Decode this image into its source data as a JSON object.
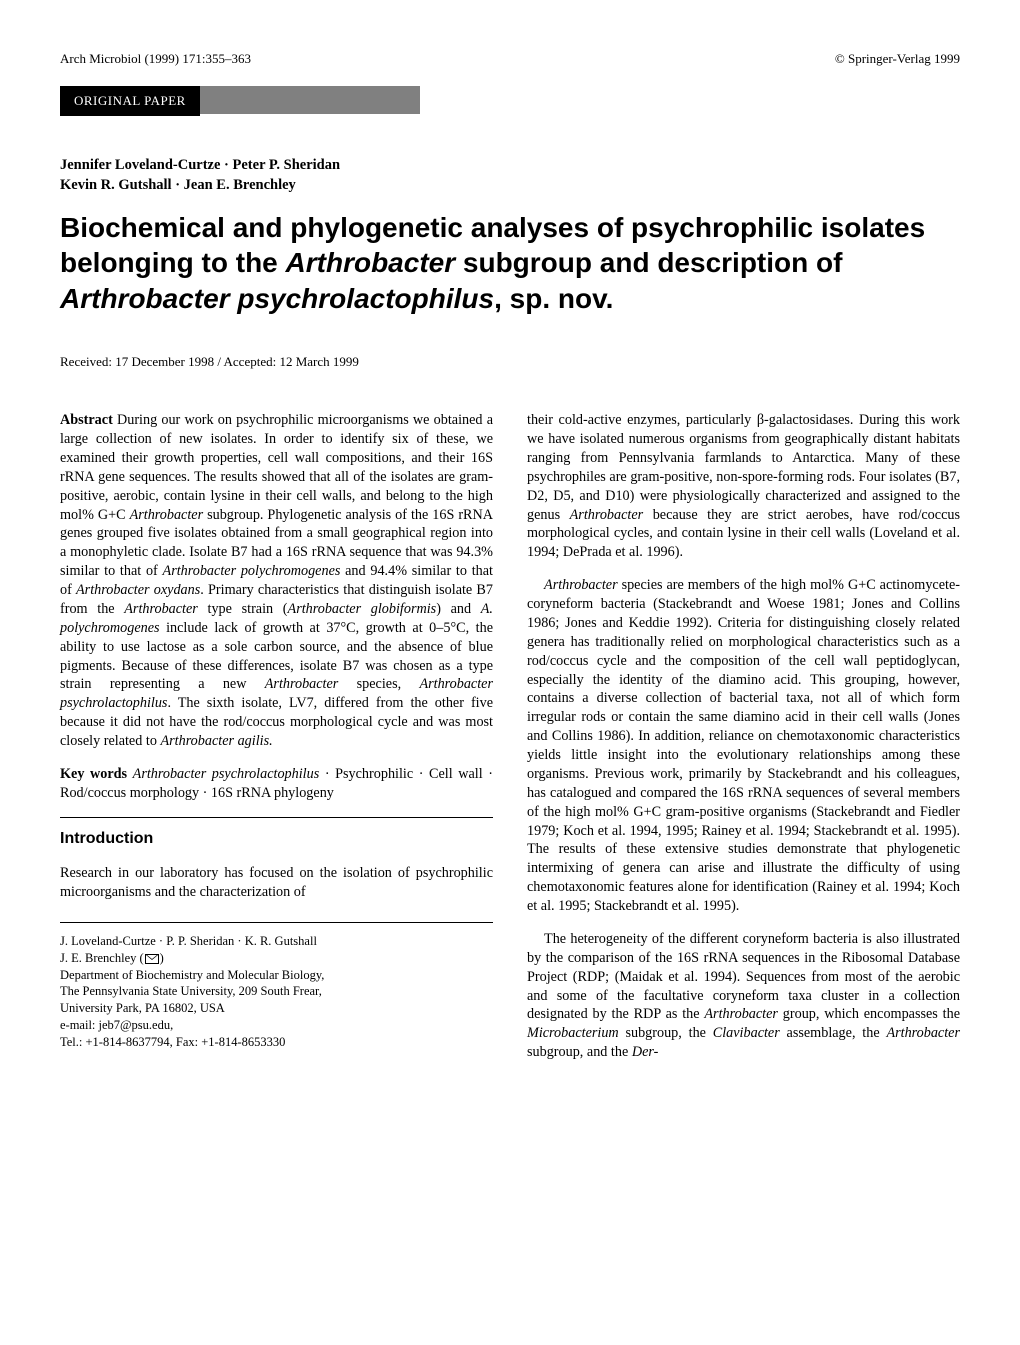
{
  "journal_ref": "Arch Microbiol (1999) 171:355–363",
  "copyright": "© Springer-Verlag 1999",
  "section_label": "ORIGINAL PAPER",
  "authors_line1": "Jennifer Loveland-Curtze · Peter P. Sheridan",
  "authors_line2": "Kevin R. Gutshall · Jean E. Brenchley",
  "title": "Biochemical and phylogenetic analyses of psychrophilic isolates belonging to the Arthrobacter subgroup and description of Arthrobacter psychrolactophilus, sp. nov.",
  "title_parts": {
    "a": "Biochemical and phylogenetic analyses of psychrophilic isolates belonging to the ",
    "b": "Arthrobacter",
    "c": " subgroup and description of ",
    "d": "Arthrobacter psychrolactophilus",
    "e": ", sp. nov."
  },
  "received": "Received: 17 December 1998 / Accepted: 12 March 1999",
  "abstract": {
    "label": "Abstract",
    "text1": " During our work on psychrophilic microorganisms we obtained a large collection of new isolates. In order to identify six of these, we examined their growth properties, cell wall compositions, and their 16S rRNA gene sequences. The results showed that all of the isolates are gram-positive, aerobic, contain lysine in their cell walls, and belong to the high mol% G+C ",
    "text1_i1": "Arthrobacter",
    "text2": " subgroup. Phylogenetic analysis of the 16S rRNA genes grouped five isolates obtained from a small geographical region into a monophyletic clade. Isolate B7 had a 16S rRNA sequence that was 94.3% similar to that of ",
    "text2_i1": "Arthrobacter polychromogenes",
    "text3": " and 94.4% similar to that of ",
    "text3_i1": "Arthrobacter oxydans",
    "text4": ". Primary characteristics that distinguish isolate B7 from the ",
    "text4_i1": "Arthrobacter",
    "text5": " type strain (",
    "text5_i1": "Arthrobacter globiformis",
    "text6": ") and ",
    "text6_i1": "A. polychromogenes",
    "text7": " include lack of growth at 37°C, growth at 0–5°C, the ability to use lactose as a sole carbon source, and the absence of blue pigments. Because of these differences, isolate B7 was chosen as a type strain representing a new ",
    "text7_i1": "Arthrobacter",
    "text8": " species, ",
    "text8_i1": "Arthrobacter psychrolactophilus",
    "text9": ". The sixth isolate, LV7, differed from the other five because it did not have the rod/coccus morphological cycle and was most closely related to ",
    "text9_i1": "Arthrobacter agilis."
  },
  "keywords": {
    "label": "Key words",
    "text": " Arthrobacter psychrolactophilus · Psychrophilic · Cell wall · Rod/coccus morphology · 16S rRNA phylogeny",
    "italic_part": "Arthrobacter psychrolactophilus",
    "rest": " · Psychrophilic · Cell wall · Rod/coccus morphology · 16S rRNA phylogeny"
  },
  "intro_heading": "Introduction",
  "intro_left_para": "Research in our laboratory has focused on the isolation of psychrophilic microorganisms and the characterization of",
  "footnote": {
    "line1": "J. Loveland-Curtze · P. P. Sheridan · K. R. Gutshall",
    "line2a": "J. E. Brenchley (",
    "line2b": ")",
    "line3": "Department of Biochemistry and Molecular Biology,",
    "line4": "The Pennsylvania State University, 209 South Frear,",
    "line5": "University Park, PA 16802, USA",
    "line6": "e-mail: jeb7@psu.edu,",
    "line7": "Tel.: +1-814-8637794, Fax: +1-814-8653330"
  },
  "right": {
    "p1a": "their cold-active enzymes, particularly β-galactosidases. During this work we have isolated numerous organisms from geographically distant habitats ranging from Pennsylvania farmlands to Antarctica. Many of these psychrophiles are gram-positive, non-spore-forming rods. Four isolates (B7, D2, D5, and D10) were physiologically characterized and assigned to the genus ",
    "p1_i1": "Arthrobacter",
    "p1b": " because they are strict aerobes, have rod/coccus morphological cycles, and contain lysine in their cell walls (Loveland et al. 1994; DePrada et al. 1996).",
    "p2_i1": "Arthrobacter",
    "p2a": " species are members of the high mol% G+C actinomycete-coryneform bacteria (Stackebrandt and Woese 1981; Jones and Collins 1986; Jones and Keddie 1992). Criteria for distinguishing closely related genera has traditionally relied on morphological characteristics such as a rod/coccus cycle and the composition of the cell wall peptidoglycan, especially the identity of the diamino acid. This grouping, however, contains a diverse collection of bacterial taxa, not all of which form irregular rods or contain the same diamino acid in their cell walls (Jones and Collins 1986). In addition, reliance on chemotaxonomic characteristics yields little insight into the evolutionary relationships among these organisms. Previous work, primarily by Stackebrandt and his colleagues, has catalogued and compared the 16S rRNA sequences of several members of the high mol% G+C gram-positive organisms (Stackebrandt and Fiedler 1979; Koch et al. 1994, 1995; Rainey et al. 1994; Stackebrandt et al. 1995). The results of these extensive studies demonstrate that phylogenetic intermixing of genera can arise and illustrate the difficulty of using chemotaxonomic features alone for identification (Rainey et al. 1994; Koch et al. 1995; Stackebrandt et al. 1995).",
    "p3a": "The heterogeneity of the different coryneform bacteria is also illustrated by the comparison of the 16S rRNA sequences in the Ribosomal Database Project (RDP; (Maidak et al. 1994). Sequences from most of the aerobic and some of the facultative coryneform taxa cluster in a collection designated by the RDP as the ",
    "p3_i1": "Arthrobacter",
    "p3b": " group, which encompasses the ",
    "p3_i2": "Microbacterium",
    "p3c": " subgroup, the ",
    "p3_i3": "Clavibacter",
    "p3d": " assemblage, the ",
    "p3_i4": "Arthrobacter",
    "p3e": " subgroup, and the ",
    "p3_i5": "Der-"
  }
}
